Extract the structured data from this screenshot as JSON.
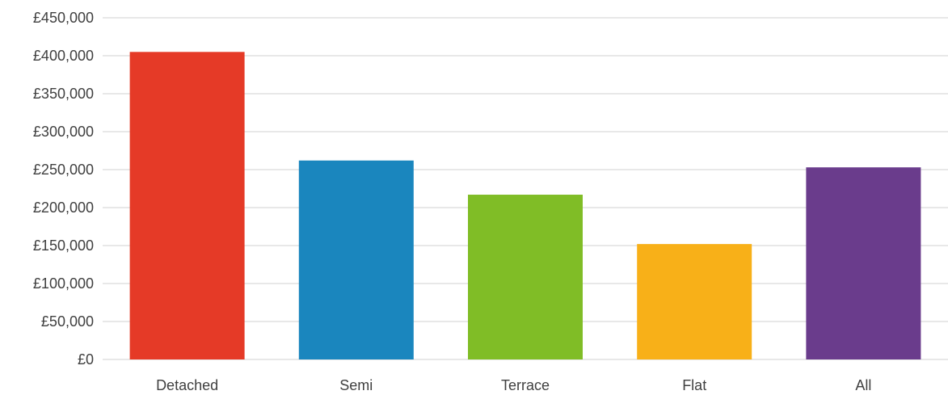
{
  "chart_data": {
    "type": "bar",
    "title": "",
    "xlabel": "",
    "ylabel": "",
    "categories": [
      "Detached",
      "Semi",
      "Terrace",
      "Flat",
      "All"
    ],
    "values": [
      405000,
      262000,
      217000,
      152000,
      253000
    ],
    "colors": [
      "#e53a27",
      "#1a86be",
      "#80bd26",
      "#f8b018",
      "#6a3c8c"
    ],
    "ylim": [
      0,
      450000
    ],
    "yticks": [
      0,
      50000,
      100000,
      150000,
      200000,
      250000,
      300000,
      350000,
      400000,
      450000
    ],
    "ytick_labels": [
      "£0",
      "£50,000",
      "£100,000",
      "£150,000",
      "£200,000",
      "£250,000",
      "£300,000",
      "£350,000",
      "£400,000",
      "£450,000"
    ],
    "grid": true,
    "legend": "none"
  }
}
